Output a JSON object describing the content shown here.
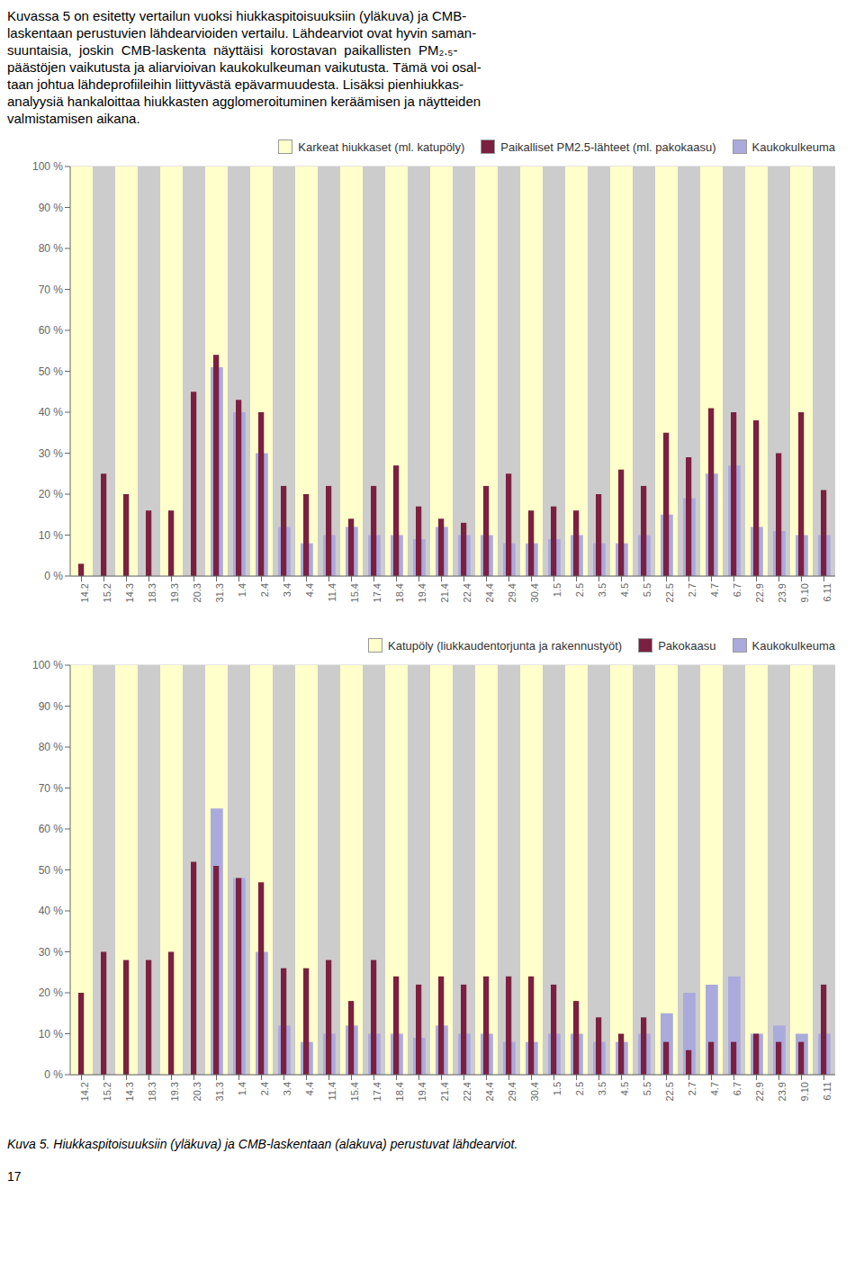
{
  "chart_data": [
    {
      "type": "bar",
      "annotations": [
        "Kuvassa 5 on esitetty vertailun vuoksi hiukkaspitoisuuksiin (yläkuva) ja CMB-",
        "laskentaan perustuvien lähdearvioiden vertailu. Lähdearviot ovat hyvin saman-",
        "suuntaisia,  joskin  CMB-laskenta  näyttäisi  korostavan  paikallisten  PM₂.₅-",
        "päästöjen vaikutusta ja aliarvioivan kaukokulkeuman vaikutusta. Tämä voi osal-",
        "taan johtua lähdeprofiileihin liittyvästä epävarmuudesta. Lisäksi pienhiukkas-",
        "analyysiä hankaloittaa hiukkasten agglomeroituminen keräämisen ja näytteiden",
        "valmistamisen aikana."
      ],
      "categories": [
        "14.2",
        "15.2",
        "14.3",
        "18.3",
        "19.3",
        "20.3",
        "31.3",
        "1.4",
        "2.4",
        "3.4",
        "4.4",
        "11.4",
        "15.4",
        "17.4",
        "18.4",
        "19.4",
        "21.4",
        "22.4",
        "24.4",
        "29.4",
        "30.4",
        "1.5",
        "2.5",
        "3.5",
        "4.5",
        "5.5",
        "22.5",
        "2.7",
        "4.7",
        "6.7",
        "22.9",
        "23.9",
        "9.10",
        "6.11"
      ],
      "series": [
        {
          "name": "Karkeat hiukkaset (ml. katupöly)",
          "colors": [
            "#ffffcc",
            "#cccccc",
            "#ffffcc",
            "#cccccc",
            "#ffffcc",
            "#cccccc",
            "#ffffcc",
            "#cccccc",
            "#ffffcc",
            "#cccccc",
            "#ffffcc",
            "#cccccc",
            "#ffffcc",
            "#cccccc",
            "#ffffcc",
            "#cccccc",
            "#ffffcc",
            "#cccccc",
            "#ffffcc",
            "#cccccc",
            "#ffffcc",
            "#cccccc",
            "#ffffcc",
            "#cccccc",
            "#ffffcc",
            "#cccccc",
            "#ffffcc",
            "#cccccc",
            "#ffffcc",
            "#cccccc",
            "#ffffcc",
            "#cccccc",
            "#ffffcc",
            "#cccccc"
          ],
          "values": [
            100,
            100,
            100,
            100,
            100,
            100,
            100,
            100,
            100,
            100,
            100,
            100,
            100,
            100,
            100,
            100,
            100,
            100,
            100,
            100,
            100,
            100,
            100,
            100,
            100,
            100,
            100,
            100,
            100,
            100,
            100,
            100,
            100,
            100
          ]
        },
        {
          "name": "Paikalliset PM2.5-lähteet (ml. pakokaasu)",
          "color": "#7b2040",
          "values": [
            3,
            25,
            20,
            16,
            16,
            45,
            54,
            43,
            40,
            22,
            20,
            22,
            14,
            22,
            27,
            17,
            14,
            13,
            22,
            25,
            16,
            17,
            16,
            20,
            26,
            22,
            35,
            29,
            41,
            40,
            38,
            30,
            40,
            21
          ]
        },
        {
          "name": "Kaukokulkeuma",
          "color": "#aaaadd",
          "values": [
            0,
            0,
            0,
            0,
            0,
            0,
            51,
            40,
            30,
            12,
            8,
            10,
            12,
            10,
            10,
            9,
            12,
            10,
            10,
            8,
            8,
            9,
            10,
            8,
            8,
            10,
            15,
            19,
            25,
            27,
            12,
            11,
            10,
            10
          ]
        }
      ],
      "ylim": [
        0,
        100
      ],
      "yticks": [
        {
          "value": 0,
          "label": "0 %"
        },
        {
          "value": 10,
          "label": "10 %"
        },
        {
          "value": 20,
          "label": "20 %"
        },
        {
          "value": 30,
          "label": "30 %"
        },
        {
          "value": 40,
          "label": "40 %"
        },
        {
          "value": 50,
          "label": "50 %"
        },
        {
          "value": 60,
          "label": "60 %"
        },
        {
          "value": 70,
          "label": "70 %"
        },
        {
          "value": 80,
          "label": "80 %"
        },
        {
          "value": 90,
          "label": "90 %"
        },
        {
          "value": 100,
          "label": "100 %"
        }
      ],
      "grid": true,
      "legend": "upper right"
    },
    {
      "type": "bar",
      "annotations": [
        "Kuva 5. Hiukkaspitoisuuksiin (yläkuva) ja CMB-laskentaan (alakuva) perustuvat lähdearviot.",
        "17"
      ],
      "categories": [
        "14.2",
        "15.2",
        "14.3",
        "18.3",
        "19.3",
        "20.3",
        "31.3",
        "1.4",
        "2.4",
        "3.4",
        "4.4",
        "11.4",
        "15.4",
        "17.4",
        "18.4",
        "19.4",
        "21.4",
        "22.4",
        "24.4",
        "29.4",
        "30.4",
        "1.5",
        "2.5",
        "3.5",
        "4.5",
        "5.5",
        "22.5",
        "2.7",
        "4.7",
        "6.7",
        "22.9",
        "23.9",
        "9.10",
        "6.11"
      ],
      "series": [
        {
          "name": "Katupöly (liukkaudentorjunta ja rakennustyöt)",
          "colors": [
            "#ffffcc",
            "#cccccc",
            "#ffffcc",
            "#cccccc",
            "#ffffcc",
            "#cccccc",
            "#ffffcc",
            "#cccccc",
            "#ffffcc",
            "#cccccc",
            "#ffffcc",
            "#cccccc",
            "#ffffcc",
            "#cccccc",
            "#ffffcc",
            "#cccccc",
            "#ffffcc",
            "#cccccc",
            "#ffffcc",
            "#cccccc",
            "#ffffcc",
            "#cccccc",
            "#ffffcc",
            "#cccccc",
            "#ffffcc",
            "#cccccc",
            "#ffffcc",
            "#cccccc",
            "#ffffcc",
            "#cccccc",
            "#ffffcc",
            "#cccccc",
            "#ffffcc",
            "#cccccc"
          ],
          "values": [
            100,
            100,
            100,
            100,
            100,
            100,
            100,
            100,
            100,
            100,
            100,
            100,
            100,
            100,
            100,
            100,
            100,
            100,
            100,
            100,
            100,
            100,
            100,
            100,
            100,
            100,
            100,
            100,
            100,
            100,
            100,
            100,
            100,
            100
          ]
        },
        {
          "name": "Pakokaasu",
          "color": "#7b2040",
          "values": [
            20,
            30,
            28,
            28,
            30,
            52,
            51,
            48,
            47,
            26,
            26,
            28,
            18,
            28,
            24,
            22,
            24,
            22,
            24,
            24,
            24,
            22,
            18,
            14,
            10,
            14,
            8,
            6,
            8,
            8,
            10,
            8,
            8,
            22
          ]
        },
        {
          "name": "Kaukokulkeuma",
          "color": "#aaaadd",
          "values": [
            0,
            0,
            0,
            0,
            0,
            0,
            65,
            48,
            30,
            12,
            8,
            10,
            12,
            10,
            10,
            9,
            12,
            10,
            10,
            8,
            8,
            10,
            10,
            8,
            8,
            10,
            15,
            20,
            22,
            24,
            10,
            12,
            10,
            10
          ]
        }
      ],
      "ylim": [
        0,
        100
      ],
      "yticks": [
        {
          "value": 0,
          "label": "0 %"
        },
        {
          "value": 10,
          "label": "10 %"
        },
        {
          "value": 20,
          "label": "20 %"
        },
        {
          "value": 30,
          "label": "30 %"
        },
        {
          "value": 40,
          "label": "40 %"
        },
        {
          "value": 50,
          "label": "50 %"
        },
        {
          "value": 60,
          "label": "60 %"
        },
        {
          "value": 70,
          "label": "70 %"
        },
        {
          "value": 80,
          "label": "80 %"
        },
        {
          "value": 90,
          "label": "90 %"
        },
        {
          "value": 100,
          "label": "100 %"
        }
      ],
      "grid": true,
      "legend": "upper right"
    }
  ]
}
